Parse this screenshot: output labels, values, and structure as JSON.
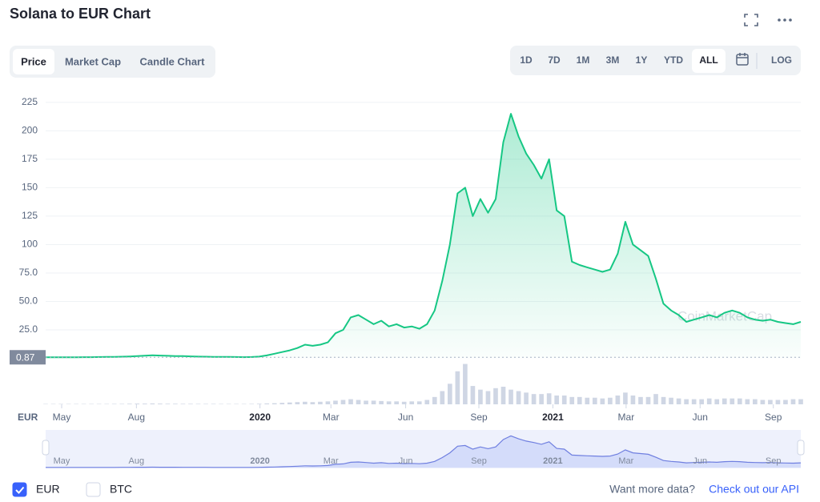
{
  "header": {
    "title": "Solana to EUR Chart",
    "tabs": [
      "Price",
      "Market Cap",
      "Candle Chart"
    ],
    "active_tab": 0,
    "ranges": [
      "1D",
      "7D",
      "1M",
      "3M",
      "1Y",
      "YTD",
      "ALL"
    ],
    "active_range": 6,
    "log_button": "LOG"
  },
  "chart_data": {
    "type": "line",
    "currency_label": "EUR",
    "watermark": "CoinMarketCap",
    "baseline": 0.87,
    "ylim": [
      0,
      239
    ],
    "yticks": [
      {
        "value": 25,
        "label": "25.0"
      },
      {
        "value": 50,
        "label": "50.0"
      },
      {
        "value": 75,
        "label": "75.0"
      },
      100,
      125,
      150,
      175,
      200,
      225
    ],
    "xticks": [
      {
        "value": 2.1,
        "label": "May"
      },
      {
        "value": 11.9,
        "label": "Aug"
      },
      {
        "value": 28.1,
        "label": "2020"
      },
      {
        "value": 37.4,
        "label": "Mar"
      },
      {
        "value": 47.2,
        "label": "Jun"
      },
      {
        "value": 56.8,
        "label": "Sep"
      },
      {
        "value": 66.5,
        "label": "2021"
      },
      {
        "value": 76.1,
        "label": "Mar"
      },
      {
        "value": 85.8,
        "label": "Jun"
      },
      {
        "value": 95.4,
        "label": "Sep"
      }
    ],
    "grid": true,
    "series": [
      {
        "name": "EUR",
        "color": "#16c784",
        "values": [
          0.87,
          0.9,
          0.9,
          0.95,
          0.95,
          1.0,
          1.0,
          1.1,
          1.2,
          1.3,
          1.4,
          1.6,
          2.0,
          2.3,
          2.6,
          2.4,
          2.2,
          2.0,
          1.9,
          1.7,
          1.5,
          1.4,
          1.3,
          1.3,
          1.2,
          1.1,
          1.0,
          1.1,
          1.5,
          2.5,
          4,
          5.5,
          7,
          9,
          12,
          11,
          12,
          14,
          22,
          25,
          36,
          38,
          34,
          30,
          33,
          28,
          30,
          27,
          28,
          26,
          30,
          42,
          68,
          100,
          145,
          150,
          125,
          140,
          128,
          140,
          190,
          215,
          195,
          180,
          170,
          158,
          175,
          130,
          125,
          85,
          82,
          80,
          78,
          76,
          78,
          92,
          120,
          100,
          95,
          90,
          70,
          48,
          42,
          38,
          32,
          34,
          36,
          38,
          36,
          40,
          42,
          40,
          36,
          34,
          33,
          34,
          32,
          31,
          30,
          32
        ]
      }
    ],
    "volume": {
      "color": "#cfd6e4",
      "vlim": [
        0,
        60
      ],
      "values": [
        0.5,
        0.5,
        0.5,
        0.5,
        0.5,
        0.5,
        0.5,
        0.5,
        0.5,
        0.6,
        0.6,
        0.8,
        1,
        1,
        1.2,
        1,
        0.8,
        0.8,
        0.7,
        0.7,
        0.6,
        0.6,
        0.6,
        0.5,
        0.5,
        0.5,
        0.5,
        0.6,
        0.8,
        1.2,
        1.5,
        2,
        2.5,
        3,
        3.5,
        3,
        3.5,
        4,
        5,
        6,
        7,
        6,
        5,
        5,
        4.5,
        4,
        4,
        3.5,
        4,
        4,
        6,
        10,
        18,
        28,
        45,
        55,
        25,
        20,
        18,
        22,
        24,
        20,
        18,
        16,
        14,
        14,
        15,
        12,
        12,
        10,
        10,
        9,
        9,
        8,
        9,
        12,
        16,
        12,
        10,
        10,
        14,
        10,
        9,
        8,
        7,
        7,
        7,
        8,
        7,
        8,
        8,
        8,
        7,
        7,
        6,
        6,
        6,
        6,
        7,
        7
      ]
    },
    "navigator_color": "#6f7fe0",
    "legend": [
      "EUR",
      "BTC"
    ],
    "legend_checked": [
      true,
      false
    ]
  },
  "footer": {
    "prompt": "Want more data?",
    "link": "Check out our API"
  }
}
